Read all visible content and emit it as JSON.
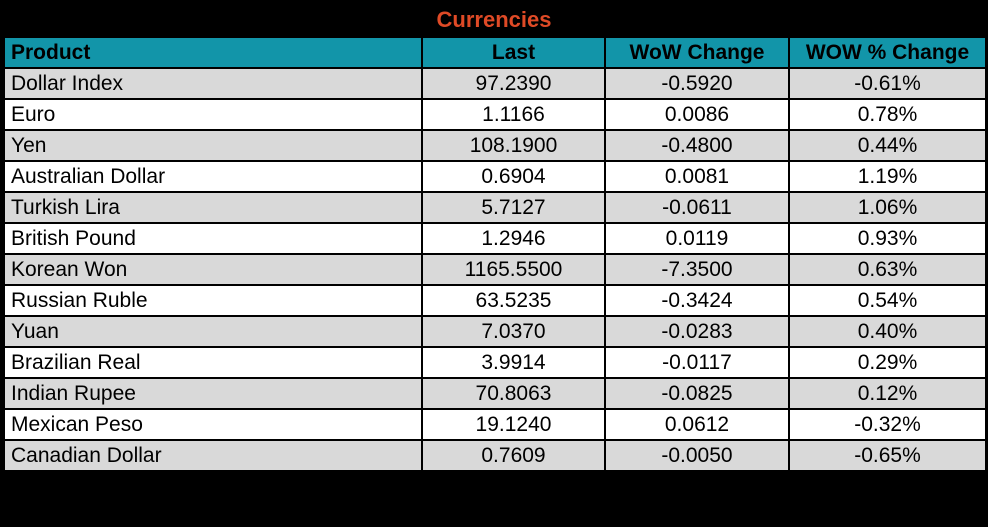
{
  "colors": {
    "title_bar_bg": "#000000",
    "title_text": "#df4a26",
    "header_bg": "#1295a9",
    "row_alt_bg": "#d9d9d9",
    "row_bg": "#ffffff",
    "border": "#000000"
  },
  "chart_data": {
    "type": "table",
    "title": "Currencies",
    "columns": [
      "Product",
      "Last",
      "WoW Change",
      "WOW % Change"
    ],
    "rows": [
      {
        "product": "Dollar Index",
        "last": "97.2390",
        "wow_change": "-0.5920",
        "wow_pct_change": "-0.61%"
      },
      {
        "product": "Euro",
        "last": "1.1166",
        "wow_change": "0.0086",
        "wow_pct_change": "0.78%"
      },
      {
        "product": "Yen",
        "last": "108.1900",
        "wow_change": "-0.4800",
        "wow_pct_change": "0.44%"
      },
      {
        "product": "Australian Dollar",
        "last": "0.6904",
        "wow_change": "0.0081",
        "wow_pct_change": "1.19%"
      },
      {
        "product": "Turkish Lira",
        "last": "5.7127",
        "wow_change": "-0.0611",
        "wow_pct_change": "1.06%"
      },
      {
        "product": "British Pound",
        "last": "1.2946",
        "wow_change": "0.0119",
        "wow_pct_change": "0.93%"
      },
      {
        "product": "Korean Won",
        "last": "1165.5500",
        "wow_change": "-7.3500",
        "wow_pct_change": "0.63%"
      },
      {
        "product": "Russian Ruble",
        "last": "63.5235",
        "wow_change": "-0.3424",
        "wow_pct_change": "0.54%"
      },
      {
        "product": "Yuan",
        "last": "7.0370",
        "wow_change": "-0.0283",
        "wow_pct_change": "0.40%"
      },
      {
        "product": "Brazilian Real",
        "last": "3.9914",
        "wow_change": "-0.0117",
        "wow_pct_change": "0.29%"
      },
      {
        "product": "Indian Rupee",
        "last": "70.8063",
        "wow_change": "-0.0825",
        "wow_pct_change": "0.12%"
      },
      {
        "product": "Mexican Peso",
        "last": "19.1240",
        "wow_change": "0.0612",
        "wow_pct_change": "-0.32%"
      },
      {
        "product": "Canadian Dollar",
        "last": "0.7609",
        "wow_change": "-0.0050",
        "wow_pct_change": "-0.65%"
      }
    ]
  }
}
